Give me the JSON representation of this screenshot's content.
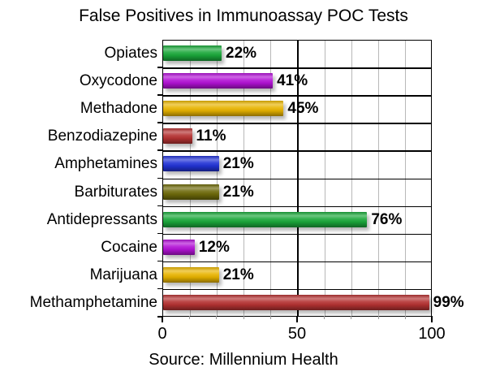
{
  "chart_data": {
    "type": "bar",
    "orientation": "horizontal",
    "title": "False Positives in Immunoassay POC Tests",
    "subtitle": "",
    "xlabel": "",
    "ylabel": "",
    "caption": "Source: Millennium Health",
    "xlim": [
      0,
      100
    ],
    "x_ticks": [
      "0",
      "50",
      "100"
    ],
    "grid": {
      "vertical_minor_step": 10,
      "major_step": 50,
      "row_dividers": true
    },
    "legend": null,
    "categories": [
      "Opiates",
      "Oxycodone",
      "Methadone",
      "Benzodiazepine",
      "Amphetamines",
      "Barbiturates",
      "Antidepressants",
      "Cocaine",
      "Marijuana",
      "Methamphetamine"
    ],
    "values": [
      22,
      41,
      45,
      11,
      21,
      21,
      76,
      12,
      21,
      99
    ],
    "value_labels": [
      "22%",
      "41%",
      "45%",
      "11%",
      "21%",
      "21%",
      "76%",
      "12%",
      "21%",
      "99%"
    ],
    "bar_colors": [
      "#1aa83a",
      "#b312d6",
      "#e8b400",
      "#b53232",
      "#2233d6",
      "#6e6a0a",
      "#1aa83a",
      "#b312d6",
      "#e8b400",
      "#b53232"
    ]
  },
  "title": "False Positives in Immunoassay POC Tests",
  "source": "Source: Millennium Health",
  "axis": {
    "t0": "0",
    "t50": "50",
    "t100": "100"
  },
  "rows": [
    {
      "label": "Opiates",
      "value_label": "22%"
    },
    {
      "label": "Oxycodone",
      "value_label": "41%"
    },
    {
      "label": "Methadone",
      "value_label": "45%"
    },
    {
      "label": "Benzodiazepine",
      "value_label": "11%"
    },
    {
      "label": "Amphetamines",
      "value_label": "21%"
    },
    {
      "label": "Barbiturates",
      "value_label": "21%"
    },
    {
      "label": "Antidepressants",
      "value_label": "76%"
    },
    {
      "label": "Cocaine",
      "value_label": "12%"
    },
    {
      "label": "Marijuana",
      "value_label": "21%"
    },
    {
      "label": "Methamphetamine",
      "value_label": "99%"
    }
  ]
}
